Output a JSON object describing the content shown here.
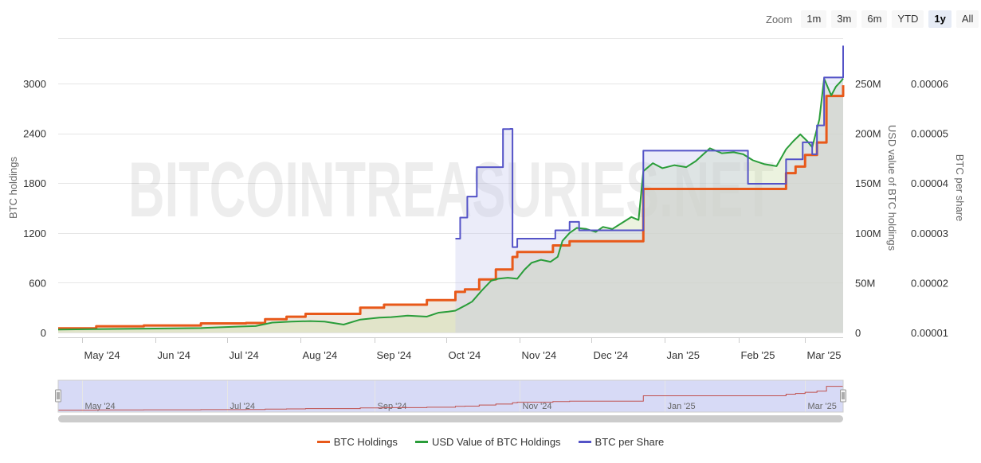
{
  "zoom": {
    "label": "Zoom",
    "buttons": [
      "1m",
      "3m",
      "6m",
      "YTD",
      "1y",
      "All"
    ],
    "selected": "1y"
  },
  "watermark": "BITCOINTREASURIES.NET",
  "colors": {
    "btc_holdings": "#e8591a",
    "usd_value": "#2a9d3a",
    "btc_per_share": "#5453c7",
    "grid": "#e6e6e6",
    "navigator_mask": "#d0d3f5"
  },
  "chart_data": {
    "type": "line",
    "title": "",
    "x_axis": {
      "type": "datetime",
      "range": [
        "2024-04-21",
        "2025-03-17"
      ],
      "tick_labels": [
        "May '24",
        "Jun '24",
        "Jul '24",
        "Aug '24",
        "Sep '24",
        "Oct '24",
        "Nov '24",
        "Dec '24",
        "Jan '25",
        "Feb '25",
        "Mar '25"
      ],
      "tick_dates": [
        "2024-05-01",
        "2024-06-01",
        "2024-07-01",
        "2024-08-01",
        "2024-09-01",
        "2024-10-01",
        "2024-11-01",
        "2024-12-01",
        "2025-01-01",
        "2025-02-01",
        "2025-03-01"
      ]
    },
    "y_axes": [
      {
        "label": "BTC holdings",
        "position": "left",
        "range": [
          0,
          3000
        ],
        "ticks": [
          0,
          600,
          1200,
          1800,
          2400,
          3000
        ],
        "tick_labels": [
          "0",
          "600",
          "1200",
          "1800",
          "2400",
          "3000"
        ]
      },
      {
        "label": "USD value of BTC holdings",
        "position": "right",
        "range": [
          0,
          250000000
        ],
        "ticks": [
          0,
          50000000,
          100000000,
          150000000,
          200000000,
          250000000
        ],
        "tick_labels": [
          "0",
          "50M",
          "100M",
          "150M",
          "200M",
          "250M"
        ]
      },
      {
        "label": "BTC per share",
        "position": "right",
        "range": [
          1e-05,
          6e-05
        ],
        "ticks": [
          1e-05,
          2e-05,
          3e-05,
          4e-05,
          5e-05,
          6e-05
        ],
        "tick_labels": [
          "0.00001",
          "0.00002",
          "0.00003",
          "0.00004",
          "0.00005",
          "0.00006"
        ]
      }
    ],
    "grid": true,
    "legend_position": "bottom-center",
    "series": [
      {
        "name": "BTC Holdings",
        "axis": 0,
        "type": "area-step",
        "points": [
          [
            "2024-04-21",
            50
          ],
          [
            "2024-05-07",
            75
          ],
          [
            "2024-05-27",
            85
          ],
          [
            "2024-06-20",
            110
          ],
          [
            "2024-07-09",
            115
          ],
          [
            "2024-07-17",
            160
          ],
          [
            "2024-07-26",
            190
          ],
          [
            "2024-08-03",
            225
          ],
          [
            "2024-08-26",
            300
          ],
          [
            "2024-09-05",
            335
          ],
          [
            "2024-09-23",
            390
          ],
          [
            "2024-10-05",
            490
          ],
          [
            "2024-10-09",
            520
          ],
          [
            "2024-10-15",
            640
          ],
          [
            "2024-10-22",
            760
          ],
          [
            "2024-10-29",
            910
          ],
          [
            "2024-10-31",
            970
          ],
          [
            "2024-11-15",
            1050
          ],
          [
            "2024-11-22",
            1100
          ],
          [
            "2024-12-01",
            1100
          ],
          [
            "2024-12-01",
            1100
          ],
          [
            "2024-12-22",
            1100
          ],
          [
            "2024-12-23",
            1730
          ],
          [
            "2025-01-10",
            1730
          ],
          [
            "2025-02-05",
            1730
          ],
          [
            "2025-02-20",
            1730
          ],
          [
            "2025-02-21",
            1920
          ],
          [
            "2025-02-25",
            2000
          ],
          [
            "2025-03-01",
            2140
          ],
          [
            "2025-03-06",
            2290
          ],
          [
            "2025-03-10",
            2850
          ],
          [
            "2025-03-15",
            2850
          ],
          [
            "2025-03-17",
            2980
          ]
        ]
      },
      {
        "name": "USD Value of BTC Holdings",
        "axis": 1,
        "type": "line",
        "points": [
          [
            "2024-04-21",
            3000000
          ],
          [
            "2024-05-10",
            3500000
          ],
          [
            "2024-06-01",
            4000000
          ],
          [
            "2024-06-20",
            4500000
          ],
          [
            "2024-07-06",
            6000000
          ],
          [
            "2024-07-13",
            6500000
          ],
          [
            "2024-07-20",
            10000000
          ],
          [
            "2024-07-28",
            11000000
          ],
          [
            "2024-08-05",
            11500000
          ],
          [
            "2024-08-11",
            11000000
          ],
          [
            "2024-08-19",
            8000000
          ],
          [
            "2024-08-26",
            13000000
          ],
          [
            "2024-09-03",
            15000000
          ],
          [
            "2024-09-08",
            15500000
          ],
          [
            "2024-09-15",
            17000000
          ],
          [
            "2024-09-23",
            16000000
          ],
          [
            "2024-09-28",
            20000000
          ],
          [
            "2024-10-02",
            21000000
          ],
          [
            "2024-10-05",
            22000000
          ],
          [
            "2024-10-09",
            27000000
          ],
          [
            "2024-10-12",
            31000000
          ],
          [
            "2024-10-16",
            42000000
          ],
          [
            "2024-10-20",
            52000000
          ],
          [
            "2024-10-23",
            54000000
          ],
          [
            "2024-10-27",
            55000000
          ],
          [
            "2024-10-31",
            54000000
          ],
          [
            "2024-11-03",
            63000000
          ],
          [
            "2024-11-06",
            70000000
          ],
          [
            "2024-11-10",
            73000000
          ],
          [
            "2024-11-14",
            71000000
          ],
          [
            "2024-11-17",
            76000000
          ],
          [
            "2024-11-19",
            92000000
          ],
          [
            "2024-11-22",
            100000000
          ],
          [
            "2024-11-25",
            105000000
          ],
          [
            "2024-11-29",
            104000000
          ],
          [
            "2024-12-03",
            101000000
          ],
          [
            "2024-12-06",
            106000000
          ],
          [
            "2024-12-10",
            104000000
          ],
          [
            "2024-12-14",
            110000000
          ],
          [
            "2024-12-18",
            116000000
          ],
          [
            "2024-12-21",
            113000000
          ],
          [
            "2024-12-23",
            162000000
          ],
          [
            "2024-12-27",
            170000000
          ],
          [
            "2024-12-31",
            165000000
          ],
          [
            "2025-01-05",
            168000000
          ],
          [
            "2025-01-10",
            166000000
          ],
          [
            "2025-01-14",
            172000000
          ],
          [
            "2025-01-20",
            185000000
          ],
          [
            "2025-01-25",
            180000000
          ],
          [
            "2025-01-30",
            181000000
          ],
          [
            "2025-02-03",
            179000000
          ],
          [
            "2025-02-07",
            173000000
          ],
          [
            "2025-02-12",
            169000000
          ],
          [
            "2025-02-17",
            167000000
          ],
          [
            "2025-02-21",
            184000000
          ],
          [
            "2025-02-24",
            192000000
          ],
          [
            "2025-02-27",
            199000000
          ],
          [
            "2025-03-02",
            192000000
          ],
          [
            "2025-03-04",
            186000000
          ],
          [
            "2025-03-07",
            214000000
          ],
          [
            "2025-03-09",
            255000000
          ],
          [
            "2025-03-12",
            238000000
          ],
          [
            "2025-03-14",
            247000000
          ],
          [
            "2025-03-16",
            252000000
          ],
          [
            "2025-03-17",
            255000000
          ]
        ]
      },
      {
        "name": "BTC per Share",
        "axis": 2,
        "type": "step",
        "points": [
          [
            "2024-10-05",
            2.884e-05
          ],
          [
            "2024-10-07",
            3.308e-05
          ],
          [
            "2024-10-10",
            3.73e-05
          ],
          [
            "2024-10-14",
            4.32e-05
          ],
          [
            "2024-10-25",
            5.085e-05
          ],
          [
            "2024-10-28",
            5.09e-05
          ],
          [
            "2024-10-29",
            2.715e-05
          ],
          [
            "2024-10-31",
            2.885e-05
          ],
          [
            "2024-11-15",
            2.885e-05
          ],
          [
            "2024-11-16",
            3.052e-05
          ],
          [
            "2024-11-22",
            3.222e-05
          ],
          [
            "2024-11-26",
            3.052e-05
          ],
          [
            "2024-12-20",
            3.052e-05
          ],
          [
            "2024-12-22",
            3.052e-05
          ],
          [
            "2024-12-23",
            4.652e-05
          ],
          [
            "2025-01-10",
            4.652e-05
          ],
          [
            "2025-02-01",
            4.652e-05
          ],
          [
            "2025-02-05",
            3.987e-05
          ],
          [
            "2025-02-15",
            3.987e-05
          ],
          [
            "2025-02-21",
            4.478e-05
          ],
          [
            "2025-02-28",
            4.819e-05
          ],
          [
            "2025-03-04",
            4.58e-05
          ],
          [
            "2025-03-06",
            5.16e-05
          ],
          [
            "2025-03-09",
            6.122e-05
          ],
          [
            "2025-03-14",
            6.122e-05
          ],
          [
            "2025-03-17",
            6.761e-05
          ]
        ]
      }
    ]
  },
  "navigator": {
    "tick_labels": [
      "May '24",
      "Jul '24",
      "Sep '24",
      "Nov '24",
      "Jan '25",
      "Mar '25"
    ],
    "tick_dates": [
      "2024-05-01",
      "2024-07-01",
      "2024-09-01",
      "2024-11-01",
      "2025-01-01",
      "2025-03-01"
    ],
    "range": [
      "2024-04-21",
      "2025-03-17"
    ]
  },
  "legend": [
    {
      "label": "BTC Holdings",
      "color": "#e8591a"
    },
    {
      "label": "USD Value of BTC Holdings",
      "color": "#2a9d3a"
    },
    {
      "label": "BTC per Share",
      "color": "#5453c7"
    }
  ]
}
